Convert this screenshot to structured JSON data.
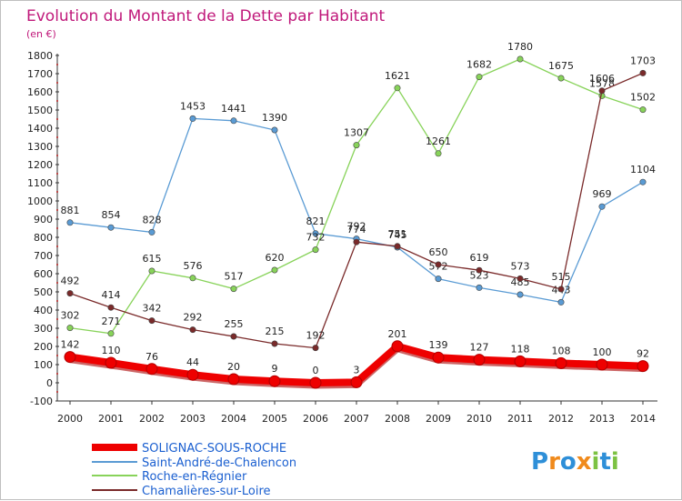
{
  "chart_data": {
    "type": "line",
    "title": "Evolution du Montant de la Dette par Habitant",
    "subtitle": "(en €)",
    "x": [
      "2000",
      "2001",
      "2002",
      "2003",
      "2004",
      "2005",
      "2006",
      "2007",
      "2008",
      "2009",
      "2010",
      "2011",
      "2012",
      "2013",
      "2014"
    ],
    "ylim": [
      -100,
      1800
    ],
    "yticks": [
      -100,
      0,
      100,
      200,
      300,
      400,
      500,
      600,
      700,
      800,
      900,
      1000,
      1100,
      1200,
      1300,
      1400,
      1500,
      1600,
      1700,
      1800
    ],
    "grid": false,
    "legend_position": "bottom-left",
    "series": [
      {
        "name": "SOLIGNAC-SOUS-ROCHE",
        "color": "#ee0000",
        "values": [
          142,
          110,
          76,
          44,
          20,
          9,
          0,
          3,
          201,
          139,
          127,
          118,
          108,
          100,
          92
        ]
      },
      {
        "name": "Saint-André-de-Chalencon",
        "color": "#5a9bd4",
        "values": [
          881,
          854,
          828,
          1453,
          1441,
          1390,
          821,
          792,
          745,
          572,
          523,
          485,
          443,
          969,
          1104
        ]
      },
      {
        "name": "Roche-en-Régnier",
        "color": "#88d35a",
        "values": [
          302,
          271,
          615,
          576,
          517,
          620,
          732,
          1307,
          1621,
          1261,
          1682,
          1780,
          1675,
          1578,
          1502
        ]
      },
      {
        "name": "Chamalières-sur-Loire",
        "color": "#7a2a2a",
        "values": [
          492,
          414,
          342,
          292,
          255,
          215,
          192,
          774,
          751,
          650,
          619,
          573,
          515,
          1606,
          1703
        ]
      }
    ]
  },
  "brand": {
    "letters": [
      "P",
      "r",
      "o",
      "x",
      "i",
      "t",
      "i"
    ],
    "colors": [
      "#2e8fd8",
      "#f08a1c",
      "#2e8fd8",
      "#f08a1c",
      "#7cc242",
      "#2e8fd8",
      "#7cc242"
    ]
  }
}
